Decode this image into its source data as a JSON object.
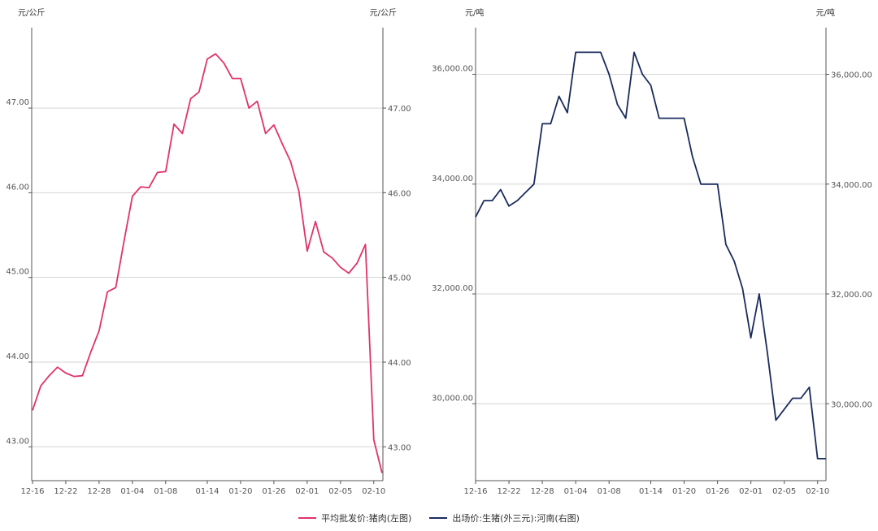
{
  "chart_data": [
    {
      "type": "line",
      "unit_left": "元/公斤",
      "unit_right": "元/公斤",
      "x_ticks": [
        "12-16",
        "12-22",
        "12-28",
        "01-04",
        "01-08",
        "01-14",
        "01-20",
        "01-26",
        "02-01",
        "02-05",
        "02-10"
      ],
      "y_ticks": [
        "43.00",
        "44.00",
        "45.00",
        "46.00",
        "47.00"
      ],
      "ylim": [
        42.6,
        47.95
      ],
      "grid": "horizontal",
      "color": "#e0336a",
      "series": [
        {
          "name": "平均批发价:猪肉(左图)",
          "values": [
            43.43,
            43.72,
            43.84,
            43.94,
            43.87,
            43.83,
            43.84,
            44.12,
            44.37,
            44.83,
            44.88,
            45.43,
            45.96,
            46.07,
            46.06,
            46.24,
            46.25,
            46.81,
            46.7,
            47.11,
            47.19,
            47.58,
            47.64,
            47.53,
            47.35,
            47.35,
            47.0,
            47.08,
            46.7,
            46.8,
            46.58,
            46.37,
            46.02,
            45.31,
            45.66,
            45.3,
            45.23,
            45.12,
            45.05,
            45.17,
            45.39,
            43.08,
            42.69
          ]
        }
      ]
    },
    {
      "type": "line",
      "unit_left": "元/吨",
      "unit_right": "元/吨",
      "x_ticks": [
        "12-16",
        "12-22",
        "12-28",
        "01-04",
        "01-08",
        "01-14",
        "01-20",
        "01-26",
        "02-01",
        "02-05",
        "02-10"
      ],
      "y_ticks": [
        "30,000.00",
        "32,000.00",
        "34,000.00",
        "36,000.00"
      ],
      "ylim": [
        28600,
        36850
      ],
      "grid": "horizontal",
      "color": "#1a2b5e",
      "series": [
        {
          "name": "出场价:生猪(外三元):河南(右图)",
          "values": [
            33400,
            33700,
            33700,
            33900,
            33600,
            33700,
            33850,
            34000,
            35100,
            35100,
            35600,
            35300,
            36400,
            36400,
            36400,
            36400,
            36000,
            35450,
            35200,
            36400,
            36000,
            35800,
            35200,
            35200,
            35200,
            35200,
            34500,
            34000,
            34000,
            34000,
            32900,
            32600,
            32100,
            31200,
            32000,
            30900,
            29700,
            29900,
            30100,
            30100,
            30300,
            29000,
            29000
          ]
        }
      ]
    }
  ],
  "legend": [
    {
      "label": "平均批发价:猪肉(左图)",
      "color": "#e0336a"
    },
    {
      "label": "出场价:生猪(外三元):河南(右图)",
      "color": "#1a2b5e"
    }
  ]
}
